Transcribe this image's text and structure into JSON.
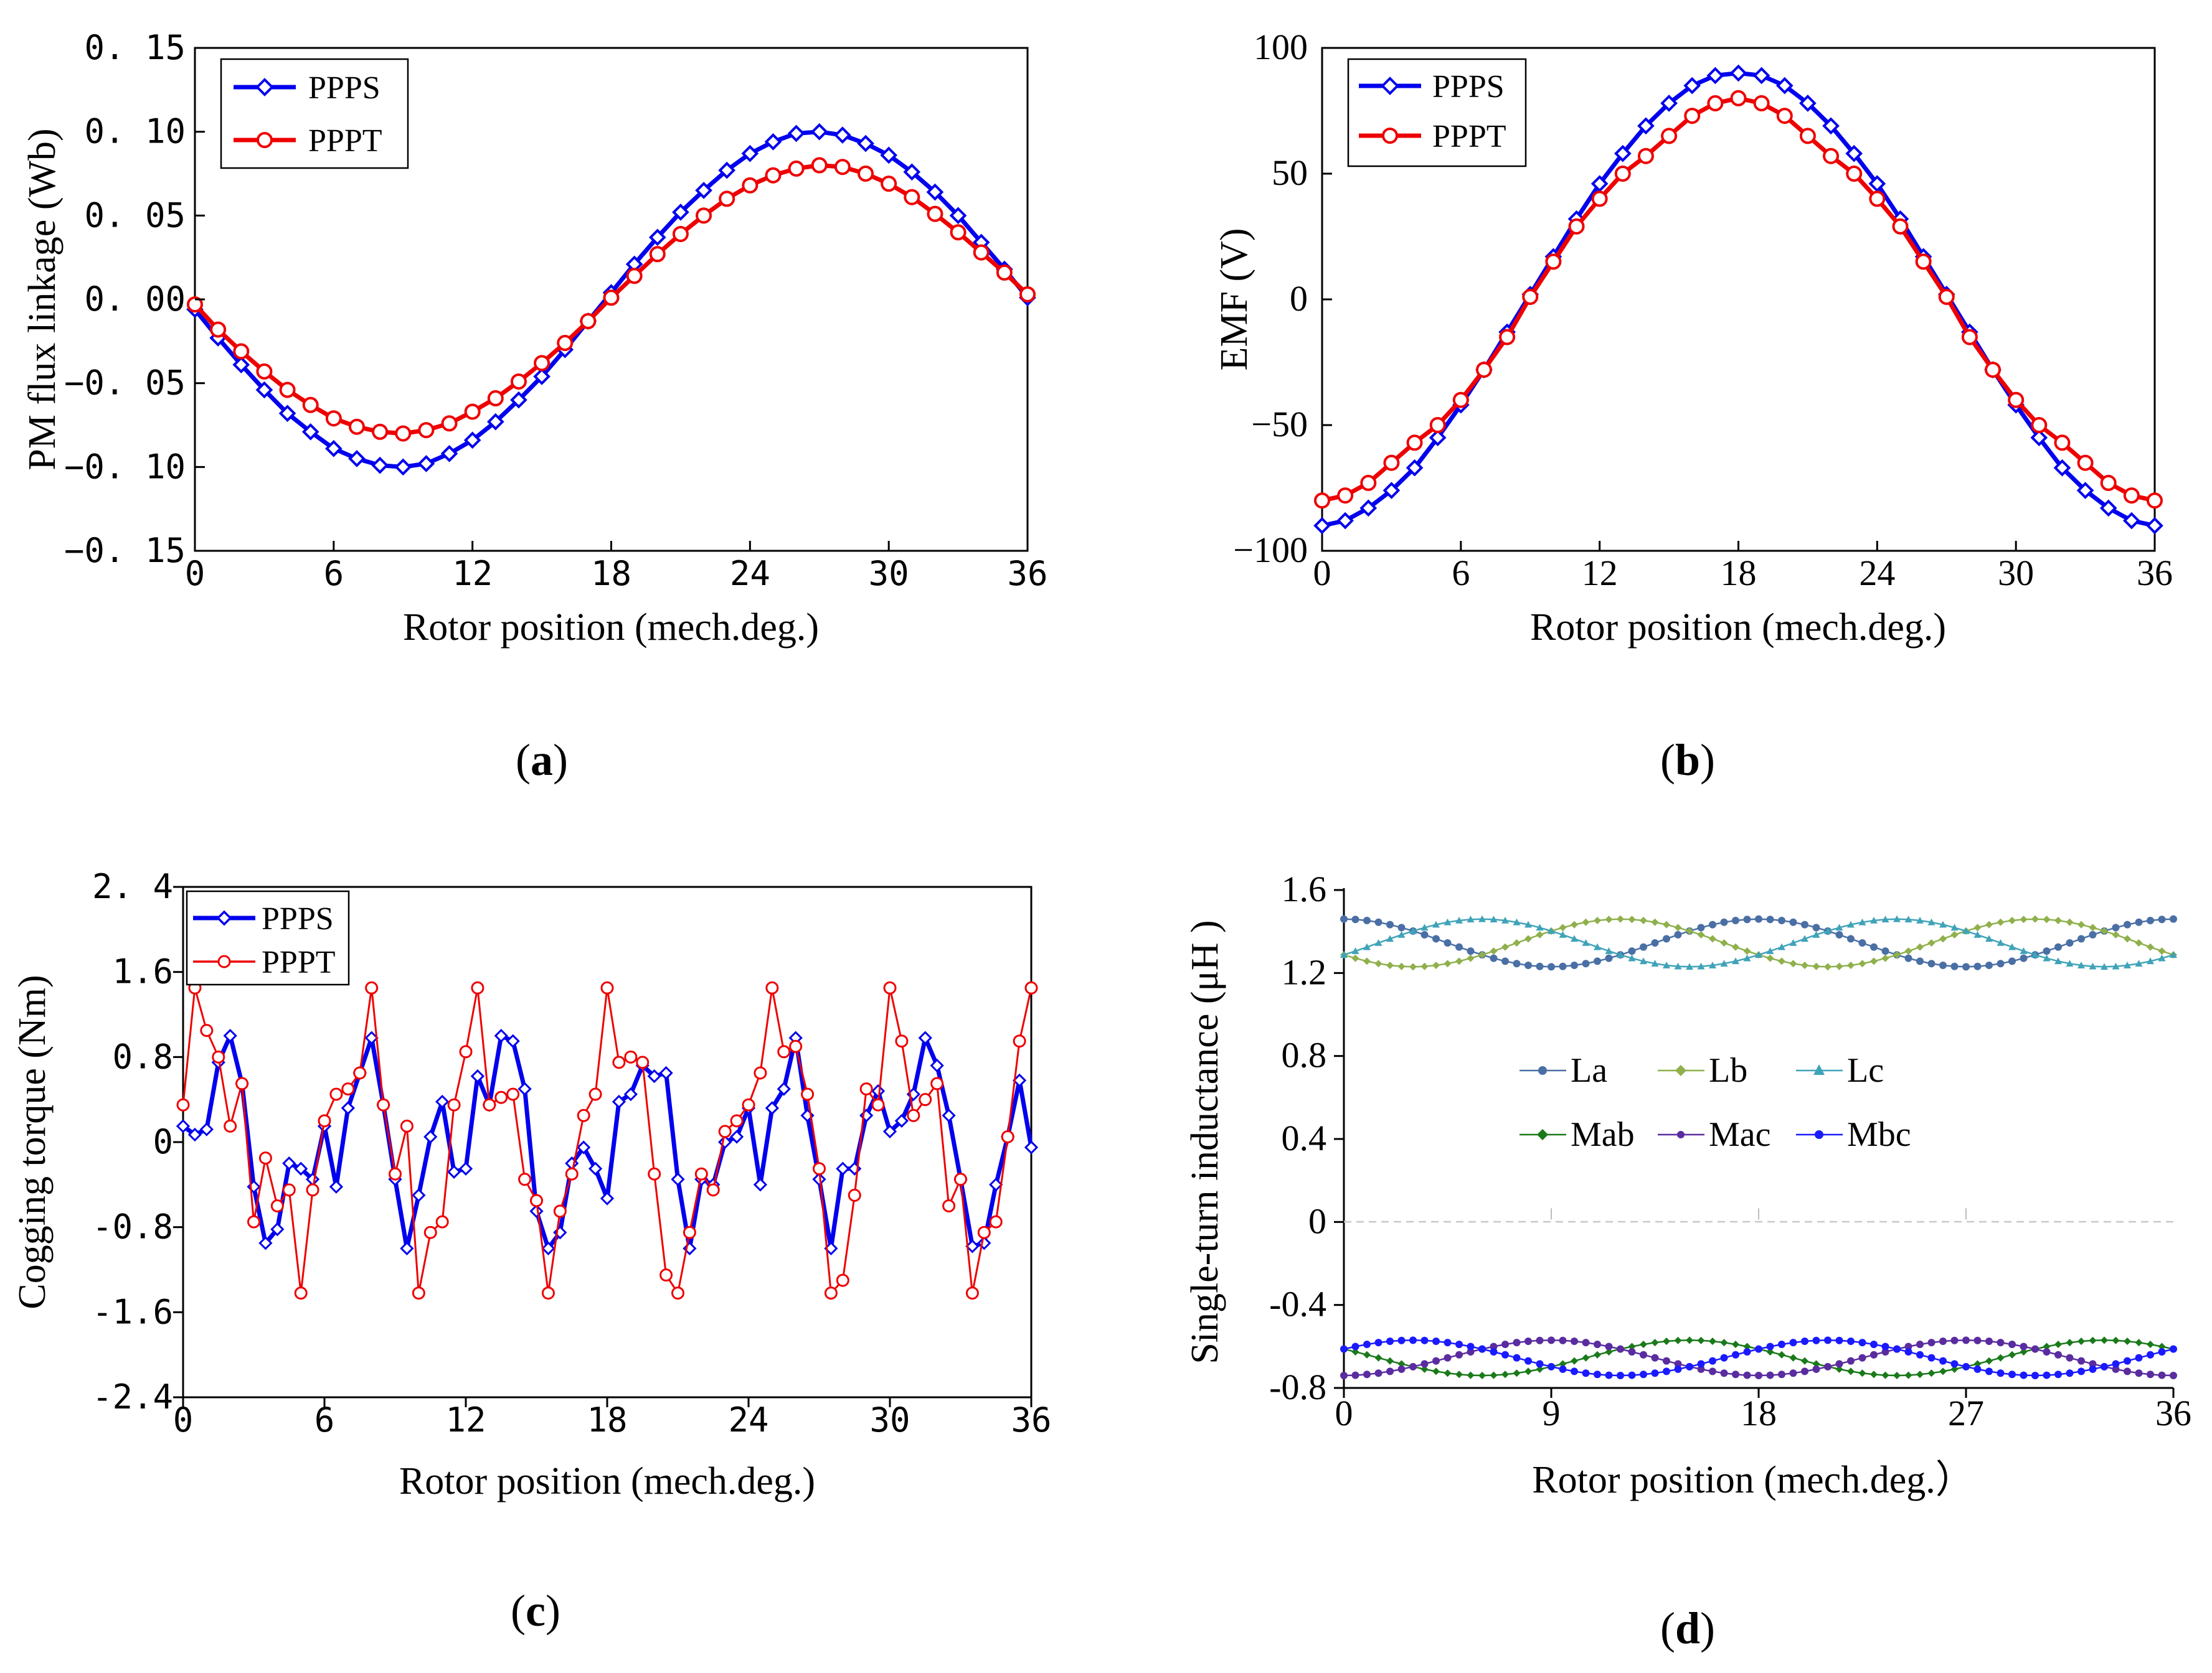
{
  "chart_data": [
    {
      "id": "a",
      "type": "line",
      "caption_open": "(",
      "caption_letter": "a",
      "caption_close": ")",
      "xlabel": "Rotor position (mech.deg.)",
      "ylabel": "PM flux linkage (Wb)",
      "xlim": [
        0,
        36
      ],
      "ylim": [
        -0.15,
        0.15
      ],
      "xticks": [
        0,
        6,
        12,
        18,
        24,
        30,
        36
      ],
      "xtick_labels": [
        "0",
        "6",
        "12",
        "18",
        "24",
        "30",
        "36"
      ],
      "yticks": [
        0.15,
        0.1,
        0.05,
        0.0,
        -0.05,
        -0.1,
        -0.15
      ],
      "ytick_labels": [
        "0. 15",
        "0. 10",
        "0. 05",
        "0. 00",
        "−0. 05",
        "−0. 10",
        "−0. 15"
      ],
      "legend": {
        "position": "top-left",
        "entries": [
          "PPPS",
          "PPPT"
        ]
      },
      "series": [
        {
          "name": "PPPS",
          "color": "#0000ee",
          "marker": "diamond",
          "x": [
            0,
            1,
            2,
            3,
            4,
            5,
            6,
            7,
            8,
            9,
            10,
            11,
            12,
            13,
            14,
            15,
            16,
            17,
            18,
            19,
            20,
            21,
            22,
            23,
            24,
            25,
            26,
            27,
            28,
            29,
            30,
            31,
            32,
            33,
            34,
            35,
            36
          ],
          "y": [
            -0.006,
            -0.023,
            -0.039,
            -0.054,
            -0.068,
            -0.079,
            -0.089,
            -0.095,
            -0.099,
            -0.1,
            -0.098,
            -0.092,
            -0.084,
            -0.073,
            -0.06,
            -0.046,
            -0.03,
            -0.013,
            0.004,
            0.021,
            0.037,
            0.052,
            0.065,
            0.077,
            0.087,
            0.094,
            0.099,
            0.1,
            0.098,
            0.093,
            0.086,
            0.076,
            0.064,
            0.05,
            0.034,
            0.018,
            0.001
          ]
        },
        {
          "name": "PPPT",
          "color": "#ee0000",
          "marker": "circle",
          "x": [
            0,
            1,
            2,
            3,
            4,
            5,
            6,
            7,
            8,
            9,
            10,
            11,
            12,
            13,
            14,
            15,
            16,
            17,
            18,
            19,
            20,
            21,
            22,
            23,
            24,
            25,
            26,
            27,
            28,
            29,
            30,
            31,
            32,
            33,
            34,
            35,
            36
          ],
          "y": [
            -0.003,
            -0.018,
            -0.031,
            -0.043,
            -0.054,
            -0.063,
            -0.071,
            -0.076,
            -0.079,
            -0.08,
            -0.078,
            -0.074,
            -0.067,
            -0.059,
            -0.049,
            -0.038,
            -0.026,
            -0.013,
            0.001,
            0.014,
            0.027,
            0.039,
            0.05,
            0.06,
            0.068,
            0.074,
            0.078,
            0.08,
            0.079,
            0.075,
            0.069,
            0.061,
            0.051,
            0.04,
            0.028,
            0.016,
            0.003
          ]
        }
      ]
    },
    {
      "id": "b",
      "type": "line",
      "caption_open": "(",
      "caption_letter": "b",
      "caption_close": ")",
      "xlabel": "Rotor position (mech.deg.)",
      "ylabel": "EMF (V)",
      "xlim": [
        0,
        36
      ],
      "ylim": [
        -100,
        100
      ],
      "xticks": [
        0,
        6,
        12,
        18,
        24,
        30,
        36
      ],
      "xtick_labels": [
        "0",
        "6",
        "12",
        "18",
        "24",
        "30",
        "36"
      ],
      "yticks": [
        100,
        50,
        0,
        -50,
        -100
      ],
      "ytick_labels": [
        "100",
        "50",
        "0",
        "−50",
        "−100"
      ],
      "legend": {
        "position": "top-left",
        "entries": [
          "PPPS",
          "PPPT"
        ]
      },
      "series": [
        {
          "name": "PPPS",
          "color": "#0000ee",
          "marker": "diamond",
          "x": [
            0,
            1,
            2,
            3,
            4,
            5,
            6,
            7,
            8,
            9,
            10,
            11,
            12,
            13,
            14,
            15,
            16,
            17,
            18,
            19,
            20,
            21,
            22,
            23,
            24,
            25,
            26,
            27,
            28,
            29,
            30,
            31,
            32,
            33,
            34,
            35,
            36
          ],
          "y": [
            -90,
            -88,
            -83,
            -76,
            -67,
            -55,
            -42,
            -28,
            -13,
            2,
            17,
            32,
            46,
            58,
            69,
            78,
            85,
            89,
            90,
            89,
            85,
            78,
            69,
            58,
            46,
            32,
            17,
            2,
            -13,
            -28,
            -42,
            -55,
            -67,
            -76,
            -83,
            -88,
            -90
          ]
        },
        {
          "name": "PPPT",
          "color": "#ee0000",
          "marker": "circle",
          "x": [
            0,
            1,
            2,
            3,
            4,
            5,
            6,
            7,
            8,
            9,
            10,
            11,
            12,
            13,
            14,
            15,
            16,
            17,
            18,
            19,
            20,
            21,
            22,
            23,
            24,
            25,
            26,
            27,
            28,
            29,
            30,
            31,
            32,
            33,
            34,
            35,
            36
          ],
          "y": [
            -80,
            -78,
            -73,
            -65,
            -57,
            -50,
            -40,
            -28,
            -15,
            1,
            15,
            29,
            40,
            50,
            57,
            65,
            73,
            78,
            80,
            78,
            73,
            65,
            57,
            50,
            40,
            29,
            15,
            1,
            -15,
            -28,
            -40,
            -50,
            -57,
            -65,
            -73,
            -78,
            -80
          ]
        }
      ]
    },
    {
      "id": "c",
      "type": "line",
      "caption_open": "(",
      "caption_letter": "c",
      "caption_close": ")",
      "xlabel": "Rotor position (mech.deg.)",
      "ylabel": "Cogging torque (Nm)",
      "xlim": [
        0,
        36
      ],
      "ylim": [
        -2.4,
        2.4
      ],
      "xticks": [
        0,
        6,
        12,
        18,
        24,
        30,
        36
      ],
      "xtick_labels": [
        "0",
        "6",
        "12",
        "18",
        "24",
        "30",
        "36"
      ],
      "yticks": [
        2.4,
        1.6,
        0.8,
        0,
        -0.8,
        -1.6,
        -2.4
      ],
      "ytick_labels": [
        "2. 4",
        "1.6",
        "0.8",
        "0",
        "-0.8",
        "-1.6",
        "-2.4"
      ],
      "legend": {
        "position": "top-left",
        "entries": [
          "PPPS",
          "PPPT"
        ]
      },
      "series": [
        {
          "name": "PPPS",
          "color": "#0000ee",
          "marker": "diamond",
          "x": [
            0,
            0.5,
            1,
            1.5,
            2,
            2.5,
            3,
            3.5,
            4,
            4.5,
            5,
            5.5,
            6,
            6.5,
            7,
            7.5,
            8,
            8.5,
            9,
            9.5,
            10,
            10.5,
            11,
            11.5,
            12,
            12.5,
            13,
            13.5,
            14,
            14.5,
            15,
            15.5,
            16,
            16.5,
            17,
            17.5,
            18,
            18.5,
            19,
            19.5,
            20,
            20.5,
            21,
            21.5,
            22,
            22.5,
            23,
            23.5,
            24,
            24.5,
            25,
            25.5,
            26,
            26.5,
            27,
            27.5,
            28,
            28.5,
            29,
            29.5,
            30,
            30.5,
            31,
            31.5,
            32,
            32.5,
            33,
            33.5,
            34,
            34.5,
            35,
            35.5,
            36
          ],
          "y": [
            0.15,
            0.07,
            0.12,
            0.75,
            1.0,
            0.55,
            -0.42,
            -0.95,
            -0.82,
            -0.2,
            -0.25,
            -0.35,
            0.15,
            -0.42,
            0.32,
            0.65,
            0.98,
            0.35,
            -0.35,
            -1.0,
            -0.5,
            0.05,
            0.38,
            -0.28,
            -0.25,
            0.62,
            0.35,
            1.0,
            0.95,
            0.5,
            -0.65,
            -1.0,
            -0.85,
            -0.2,
            -0.05,
            -0.25,
            -0.53,
            0.38,
            0.45,
            0.72,
            0.62,
            0.65,
            -0.35,
            -1.0,
            -0.35,
            -0.4,
            0.0,
            0.05,
            0.32,
            -0.4,
            0.32,
            0.5,
            0.98,
            0.25,
            -0.35,
            -1.0,
            -0.25,
            -0.25,
            0.25,
            0.48,
            0.1,
            0.2,
            0.45,
            0.98,
            0.72,
            0.25,
            -0.35,
            -0.98,
            -0.95,
            -0.4,
            0.05,
            0.58,
            -0.05
          ]
        },
        {
          "name": "PPPT",
          "color": "#ee0000",
          "marker": "circle",
          "x": [
            0,
            0.5,
            1,
            1.5,
            2,
            2.5,
            3,
            3.5,
            4,
            4.5,
            5,
            5.5,
            6,
            6.5,
            7,
            7.5,
            8,
            8.5,
            9,
            9.5,
            10,
            10.5,
            11,
            11.5,
            12,
            12.5,
            13,
            13.5,
            14,
            14.5,
            15,
            15.5,
            16,
            16.5,
            17,
            17.5,
            18,
            18.5,
            19,
            19.5,
            20,
            20.5,
            21,
            21.5,
            22,
            22.5,
            23,
            23.5,
            24,
            24.5,
            25,
            25.5,
            26,
            26.5,
            27,
            27.5,
            28,
            28.5,
            29,
            29.5,
            30,
            30.5,
            31,
            31.5,
            32,
            32.5,
            33,
            33.5,
            34,
            34.5,
            35,
            35.5,
            36
          ],
          "y": [
            0.35,
            1.45,
            1.05,
            0.8,
            0.15,
            0.55,
            -0.75,
            -0.15,
            -0.6,
            -0.45,
            -1.42,
            -0.45,
            0.2,
            0.45,
            0.5,
            0.65,
            1.45,
            0.35,
            -0.3,
            0.15,
            -1.42,
            -0.85,
            -0.75,
            0.35,
            0.85,
            1.45,
            0.35,
            0.42,
            0.45,
            -0.35,
            -0.55,
            -1.42,
            -0.65,
            -0.3,
            0.25,
            0.45,
            1.45,
            0.75,
            0.8,
            0.75,
            -0.3,
            -1.25,
            -1.42,
            -0.85,
            -0.3,
            -0.45,
            0.1,
            0.2,
            0.35,
            0.65,
            1.45,
            0.85,
            0.9,
            0.45,
            -0.25,
            -1.42,
            -1.3,
            -0.5,
            0.5,
            0.35,
            1.45,
            0.95,
            0.25,
            0.4,
            0.55,
            -0.6,
            -0.35,
            -1.42,
            -0.85,
            -0.75,
            0.05,
            0.95,
            1.45
          ]
        }
      ]
    },
    {
      "id": "d",
      "type": "line",
      "caption_open": "(",
      "caption_letter": "d",
      "caption_close": ")",
      "xlabel": "Rotor position (mech.deg.）",
      "ylabel": "Single-turn inductance (μH )",
      "xlim": [
        0,
        36
      ],
      "ylim": [
        -0.8,
        1.6
      ],
      "xticks": [
        0,
        9,
        18,
        27,
        36
      ],
      "xtick_labels": [
        "0",
        "9",
        "18",
        "27",
        "36"
      ],
      "yticks": [
        1.6,
        1.2,
        0.8,
        0.4,
        0,
        -0.4,
        -0.8
      ],
      "ytick_labels": [
        "1.6",
        "1.2",
        "0.8",
        "0.4",
        "0",
        "-0.4",
        "-0.8"
      ],
      "legend": {
        "position": "center-left",
        "entries": [
          "La",
          "Lb",
          "Lc",
          "Mab",
          "Mac",
          "Mbc"
        ]
      },
      "series": [
        {
          "name": "La",
          "color": "#4a6fa5",
          "marker": "dot",
          "offset": 1.345,
          "amplitude": 0.115,
          "period": 18,
          "phase": 0
        },
        {
          "name": "Lb",
          "color": "#8fb04c",
          "marker": "diamond",
          "offset": 1.345,
          "amplitude": 0.115,
          "period": 18,
          "phase": 120
        },
        {
          "name": "Lc",
          "color": "#3fa3b8",
          "marker": "triangle",
          "offset": 1.345,
          "amplitude": 0.115,
          "period": 18,
          "phase": 240
        },
        {
          "name": "Mab",
          "color": "#1a7a1a",
          "marker": "diamond",
          "offset": -0.655,
          "amplitude": 0.085,
          "period": 18,
          "phase": 60
        },
        {
          "name": "Mac",
          "color": "#5a2ca0",
          "marker": "dot",
          "offset": -0.655,
          "amplitude": 0.085,
          "period": 18,
          "phase": 180
        },
        {
          "name": "Mbc",
          "color": "#1a1aff",
          "marker": "dot",
          "offset": -0.655,
          "amplitude": 0.085,
          "period": 18,
          "phase": 300
        }
      ]
    }
  ]
}
